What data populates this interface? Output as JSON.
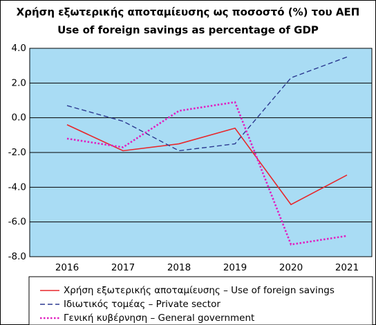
{
  "chart_data": {
    "type": "line",
    "title": [
      "Χρήση εξωτερικής αποταμίευσης ως ποσοστό (%) του ΑΕΠ",
      "Use of foreign savings as percentage of GDP"
    ],
    "categories": [
      "2016",
      "2017",
      "2018",
      "2019",
      "2020",
      "2021"
    ],
    "series": [
      {
        "name": "Χρήση εξωτερικής αποταμίευσης – Use of foreign savings",
        "color": "#e8262a",
        "dash": "solid",
        "values": [
          -0.4,
          -1.9,
          -1.5,
          -0.6,
          -5.0,
          -3.3
        ]
      },
      {
        "name": "Ιδιωτικός τομέας – Private sector",
        "color": "#2b3990",
        "dash": "dashed",
        "values": [
          0.7,
          -0.2,
          -1.9,
          -1.5,
          2.3,
          3.5
        ]
      },
      {
        "name": "Γενική κυβέρνηση – General government",
        "color": "#e020c0",
        "dash": "dotted",
        "values": [
          -1.2,
          -1.7,
          0.4,
          0.9,
          -7.3,
          -6.8
        ]
      }
    ],
    "ylim": [
      -8,
      4
    ],
    "yticks": [
      {
        "value": 4,
        "label": "4.0"
      },
      {
        "value": 2,
        "label": "2.0"
      },
      {
        "value": 0,
        "label": "0.0"
      },
      {
        "value": -2,
        "label": "-2.0"
      },
      {
        "value": -4,
        "label": "-4.0"
      },
      {
        "value": -6,
        "label": "-6.0"
      },
      {
        "value": -8,
        "label": "-8.0"
      }
    ],
    "grid": true,
    "plot_background": "#a9dcf4",
    "legend": "bottom"
  }
}
